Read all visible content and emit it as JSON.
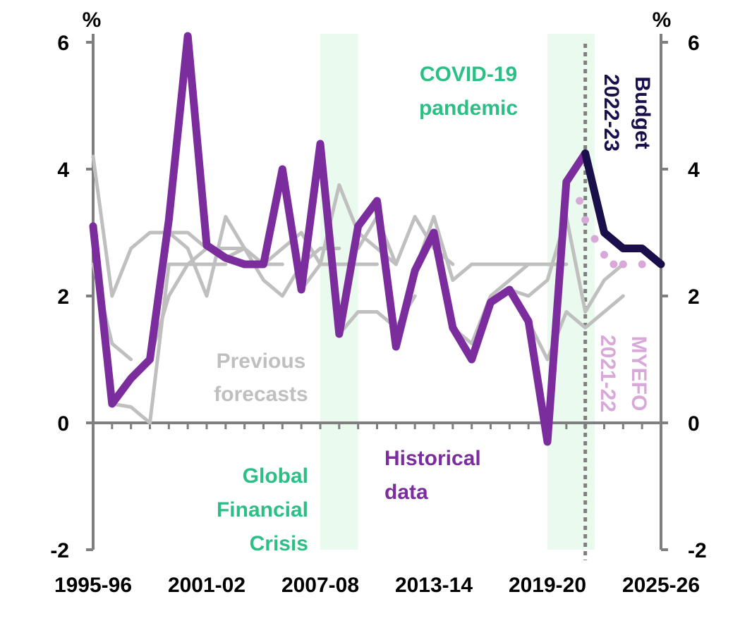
{
  "chart_data": {
    "type": "line",
    "ylim": [
      -2,
      6
    ],
    "y_ticks": [
      "-2",
      "0",
      "2",
      "4",
      "6"
    ],
    "unit_left": "%",
    "unit_right": "%",
    "x_start_year": 1995,
    "x_end_year": 2025,
    "x_tick_labels": [
      "1995-96",
      "2001-02",
      "2007-08",
      "2013-14",
      "2019-20",
      "2025-26"
    ],
    "budget_line_year": 2021,
    "shaded_periods": [
      {
        "label": "Global Financial Crisis",
        "lines": [
          "Global",
          "Financial",
          "Crisis"
        ],
        "start": 2007,
        "end": 2009
      },
      {
        "label": "COVID-19 pandemic",
        "lines": [
          "COVID-19",
          "pandemic"
        ],
        "start": 2019,
        "end": 2021.5
      }
    ],
    "colors": {
      "historical": "#7b2d9e",
      "budget": "#1a0f4a",
      "myefo": "#d8a8d8",
      "previous": "#bfbfbf",
      "shade": "#eafaef",
      "annotation_green": "#2bbf85",
      "axis": "#7f7f7f"
    },
    "series": [
      {
        "name": "Historical data",
        "label_lines": [
          "Historical",
          "data"
        ],
        "x": [
          1995,
          1996,
          1997,
          1998,
          1999,
          2000,
          2001,
          2002,
          2003,
          2004,
          2005,
          2006,
          2007,
          2008,
          2009,
          2010,
          2011,
          2012,
          2013,
          2014,
          2015,
          2016,
          2017,
          2018,
          2019,
          2020,
          2021
        ],
        "y": [
          3.1,
          0.3,
          0.7,
          1.0,
          3.2,
          6.1,
          2.8,
          2.6,
          2.5,
          2.5,
          4.0,
          2.1,
          4.4,
          1.4,
          3.1,
          3.5,
          1.2,
          2.4,
          3.0,
          1.5,
          1.0,
          1.9,
          2.1,
          1.6,
          -0.3,
          3.8,
          4.25
        ]
      },
      {
        "name": "2022-23 Budget",
        "label_lines": [
          "2022-23",
          "Budget"
        ],
        "x": [
          2021,
          2022,
          2023,
          2024,
          2025
        ],
        "y": [
          4.25,
          3.0,
          2.75,
          2.75,
          2.5
        ]
      },
      {
        "name": "2021-22 MYEFO",
        "label_lines": [
          "2021-22",
          "MYEFO"
        ],
        "x": [
          2020.7,
          2021,
          2021.5,
          2022,
          2022.5,
          2023,
          2024
        ],
        "y": [
          3.5,
          3.2,
          2.9,
          2.65,
          2.5,
          2.5,
          2.5
        ]
      }
    ],
    "previous_forecasts": {
      "label_lines": [
        "Previous",
        "forecasts"
      ],
      "lines": [
        {
          "x": [
            1995,
            1996,
            1997
          ],
          "y": [
            4.2,
            2.0,
            2.75
          ]
        },
        {
          "x": [
            1996,
            1997,
            1998,
            1999,
            2000,
            2001,
            2002
          ],
          "y": [
            0.3,
            0.25,
            0.0,
            2.5,
            2.5,
            2.5,
            2.5
          ]
        },
        {
          "x": [
            1997,
            1998,
            1999,
            2000,
            2001
          ],
          "y": [
            2.75,
            3.0,
            3.0,
            3.0,
            2.75
          ]
        },
        {
          "x": [
            1998,
            1999,
            2000,
            2001,
            2002,
            2003
          ],
          "y": [
            1.0,
            2.0,
            2.5,
            2.75,
            2.75,
            2.75
          ]
        },
        {
          "x": [
            1999,
            2000,
            2001,
            2002,
            2003,
            2004,
            2005
          ],
          "y": [
            3.0,
            2.75,
            2.0,
            3.25,
            2.75,
            2.5,
            2.5
          ]
        },
        {
          "x": [
            2002,
            2003,
            2004,
            2005,
            2006,
            2007,
            2008
          ],
          "y": [
            2.6,
            2.75,
            2.25,
            2.0,
            2.5,
            2.75,
            2.75
          ]
        },
        {
          "x": [
            2004,
            2005,
            2006,
            2007,
            2008,
            2009,
            2010
          ],
          "y": [
            2.5,
            2.75,
            3.0,
            2.5,
            2.5,
            2.5,
            2.5
          ]
        },
        {
          "x": [
            2006,
            2007,
            2008,
            2009,
            2010,
            2011
          ],
          "y": [
            2.1,
            2.5,
            3.75,
            3.0,
            2.75,
            2.5
          ]
        },
        {
          "x": [
            2008,
            2009,
            2010,
            2011,
            2012
          ],
          "y": [
            1.4,
            1.75,
            1.75,
            1.5,
            2.0
          ]
        },
        {
          "x": [
            2009,
            2010,
            2011,
            2012,
            2013,
            2014
          ],
          "y": [
            2.75,
            3.25,
            2.5,
            3.25,
            2.75,
            2.5
          ]
        },
        {
          "x": [
            2012,
            2013,
            2014,
            2015,
            2016,
            2017,
            2018,
            2019,
            2020
          ],
          "y": [
            2.4,
            3.25,
            2.25,
            2.5,
            2.5,
            2.5,
            2.5,
            2.5,
            2.5
          ]
        },
        {
          "x": [
            2014,
            2015,
            2016,
            2017,
            2018,
            2019,
            2020
          ],
          "y": [
            1.5,
            1.25,
            2.0,
            2.25,
            2.5,
            2.5,
            2.5
          ]
        },
        {
          "x": [
            2017,
            2018,
            2019,
            2020,
            2021,
            2022,
            2023
          ],
          "y": [
            2.1,
            2.0,
            2.25,
            3.25,
            1.75,
            2.25,
            2.5
          ]
        },
        {
          "x": [
            2018,
            2019,
            2020,
            2021,
            2022,
            2023
          ],
          "y": [
            1.6,
            1.0,
            1.75,
            1.5,
            1.75,
            2.0
          ]
        },
        {
          "x": [
            1995,
            1996,
            1997
          ],
          "y": [
            2.5,
            1.25,
            1.0
          ]
        }
      ]
    }
  }
}
